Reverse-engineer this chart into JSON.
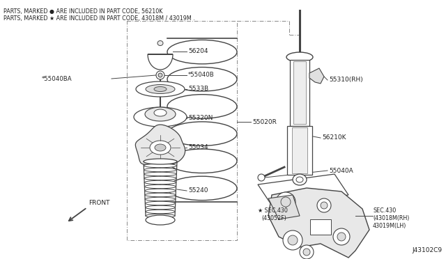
{
  "bg_color": "#ffffff",
  "line_color": "#444444",
  "text_color": "#222222",
  "header_line1": "PARTS, MARKED ● ARE INCLUDED IN PART CODE, 56210K",
  "header_line2": "PARTS, MARKED ★ ARE INCLUDED IN PART CODE, 43018M / 43019M .",
  "footer_code": "J43102C9",
  "figsize": [
    6.4,
    3.72
  ],
  "dpi": 100
}
